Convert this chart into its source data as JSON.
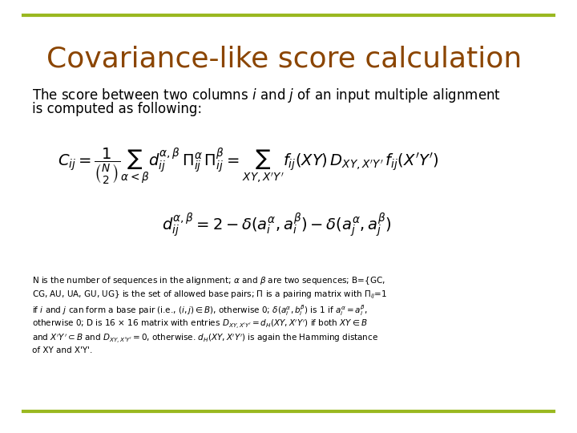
{
  "title": "Covariance-like score calculation",
  "title_color": "#8B4500",
  "title_fontsize": 26,
  "body_fontsize": 12,
  "body_color": "#000000",
  "line_color": "#9AB820",
  "line_width": 3,
  "bg_color": "#FFFFFF",
  "formula_color": "#000000",
  "formula_fontsize": 14,
  "small_text_fontsize": 7.5,
  "small_text_color": "#000000"
}
